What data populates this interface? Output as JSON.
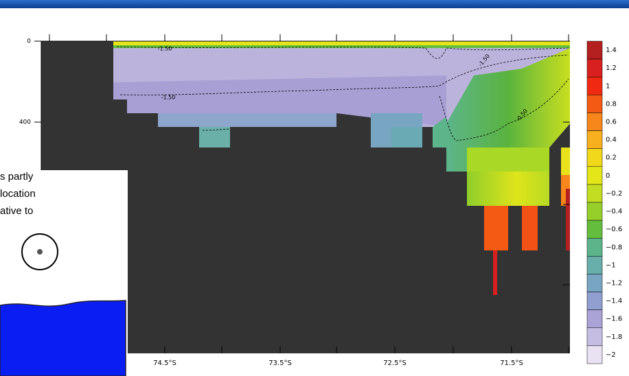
{
  "plot": {
    "y_labels": [
      "0",
      "400"
    ],
    "x_labels": [
      "74.5°S",
      "73.5°S",
      "72.5°S",
      "71.5°S"
    ],
    "contour_labels": [
      "-1.50",
      "-1.50",
      "-1.50",
      "-0.50"
    ]
  },
  "colorbar": {
    "labels": [
      "1.4",
      "1.2",
      "1",
      "0.8",
      "0.6",
      "0.4",
      "0.2",
      "0",
      "−0.2",
      "−0.4",
      "−0.6",
      "−0.8",
      "−1",
      "−1.2",
      "−1.4",
      "−1.6",
      "−1.8",
      "−2"
    ],
    "colors": [
      "#b41f1f",
      "#d82020",
      "#f02a12",
      "#f45a14",
      "#f7861b",
      "#f9b01f",
      "#f1d81a",
      "#e4e61a",
      "#c3dd22",
      "#97cf2a",
      "#64bd3c",
      "#5cb48a",
      "#68aeaa",
      "#78a6c2",
      "#909fd0",
      "#aaa3d6",
      "#c6bde3",
      "#e8e2f2"
    ]
  },
  "overlay": {
    "lines": [
      "s partly",
      "location",
      "ative to"
    ]
  }
}
